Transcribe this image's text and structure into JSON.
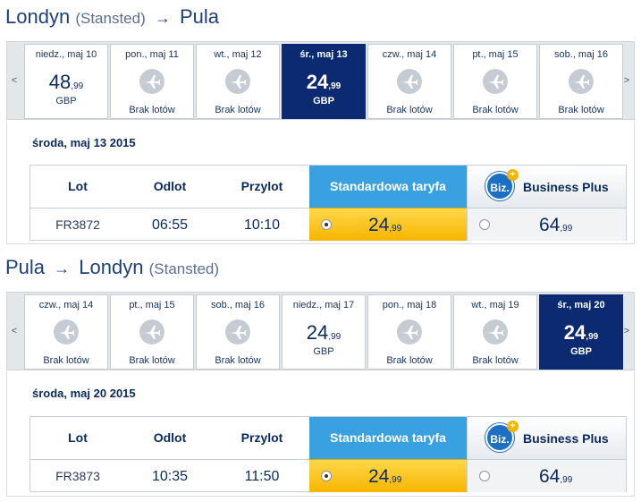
{
  "outbound": {
    "route": {
      "from": "Londyn",
      "from_airport": "(Stansted)",
      "arrow": "→",
      "to": "Pula"
    },
    "nav": {
      "prev": "<",
      "next": ">"
    },
    "days": [
      {
        "label": "niedz., maj 10",
        "price_major": "48",
        "price_minor": "99",
        "currency": "GBP",
        "no_flights": "",
        "selected": false
      },
      {
        "label": "pon., maj 11",
        "price_major": "",
        "price_minor": "",
        "currency": "",
        "no_flights": "Brak lotów",
        "selected": false
      },
      {
        "label": "wt., maj 12",
        "price_major": "",
        "price_minor": "",
        "currency": "",
        "no_flights": "Brak lotów",
        "selected": false
      },
      {
        "label": "śr., maj 13",
        "price_major": "24",
        "price_minor": "99",
        "currency": "GBP",
        "no_flights": "",
        "selected": true
      },
      {
        "label": "czw., maj 14",
        "price_major": "",
        "price_minor": "",
        "currency": "",
        "no_flights": "Brak lotów",
        "selected": false
      },
      {
        "label": "pt., maj 15",
        "price_major": "",
        "price_minor": "",
        "currency": "",
        "no_flights": "Brak lotów",
        "selected": false
      },
      {
        "label": "sob., maj 16",
        "price_major": "",
        "price_minor": "",
        "currency": "",
        "no_flights": "Brak lotów",
        "selected": false
      }
    ],
    "date_heading": "środa, maj 13 2015",
    "table": {
      "col_flight": "Lot",
      "col_departure": "Odlot",
      "col_arrival": "Przylot",
      "col_standard": "Standardowa taryfa",
      "biz_logo": "Biz.",
      "biz_plus": "+",
      "col_business": "Business Plus"
    },
    "flight": {
      "number": "FR3872",
      "departure": "06:55",
      "arrival": "10:10",
      "standard_major": "24",
      "standard_minor": "99",
      "business_major": "64",
      "business_minor": "99"
    }
  },
  "return": {
    "route": {
      "from": "Pula",
      "arrow": "→",
      "to": "Londyn",
      "to_airport": "(Stansted)"
    },
    "nav": {
      "prev": "<",
      "next": ">"
    },
    "days": [
      {
        "label": "czw., maj 14",
        "price_major": "",
        "price_minor": "",
        "currency": "",
        "no_flights": "Brak lotów",
        "selected": false
      },
      {
        "label": "pt., maj 15",
        "price_major": "",
        "price_minor": "",
        "currency": "",
        "no_flights": "Brak lotów",
        "selected": false
      },
      {
        "label": "sob., maj 16",
        "price_major": "",
        "price_minor": "",
        "currency": "",
        "no_flights": "Brak lotów",
        "selected": false
      },
      {
        "label": "niedz., maj 17",
        "price_major": "24",
        "price_minor": "99",
        "currency": "GBP",
        "no_flights": "",
        "selected": false
      },
      {
        "label": "pon., maj 18",
        "price_major": "",
        "price_minor": "",
        "currency": "",
        "no_flights": "Brak lotów",
        "selected": false
      },
      {
        "label": "wt., maj 19",
        "price_major": "",
        "price_minor": "",
        "currency": "",
        "no_flights": "Brak lotów",
        "selected": false
      },
      {
        "label": "śr., maj 20",
        "price_major": "24",
        "price_minor": "99",
        "currency": "GBP",
        "no_flights": "",
        "selected": true
      }
    ],
    "date_heading": "środa, maj 20 2015",
    "table": {
      "col_flight": "Lot",
      "col_departure": "Odlot",
      "col_arrival": "Przylot",
      "col_standard": "Standardowa taryfa",
      "biz_logo": "Biz.",
      "biz_plus": "+",
      "col_business": "Business Plus"
    },
    "flight": {
      "number": "FR3873",
      "departure": "10:35",
      "arrival": "11:50",
      "standard_major": "24",
      "standard_minor": "99",
      "business_major": "64",
      "business_minor": "99"
    }
  }
}
